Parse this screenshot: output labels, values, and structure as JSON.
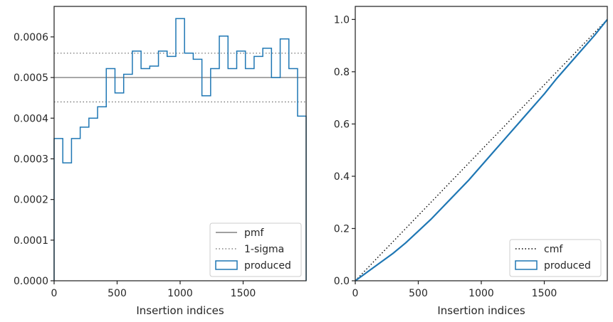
{
  "colors": {
    "produced": "#1f77b4",
    "pmf": "#808080",
    "sigma": "#808080",
    "cmf": "#000000",
    "axes": "#262626"
  },
  "chart_data": [
    {
      "type": "histogram",
      "xlabel": "Insertion indices",
      "ylabel": "",
      "xlim": [
        0,
        2000
      ],
      "ylim": [
        0,
        0.000675
      ],
      "xticks": [
        0,
        500,
        1000,
        1500
      ],
      "xtick_labels": [
        "0",
        "500",
        "1000",
        "1500"
      ],
      "yticks": [
        0,
        0.0001,
        0.0002,
        0.0003,
        0.0004,
        0.0005,
        0.0006
      ],
      "ytick_labels": [
        "0.0000",
        "0.0001",
        "0.0002",
        "0.0003",
        "0.0004",
        "0.0005",
        "0.0006"
      ],
      "bin_width": 69,
      "bin_edges_start": 0,
      "produced_values": [
        0.00035,
        0.00029,
        0.00035,
        0.000378,
        0.0004,
        0.000428,
        0.000522,
        0.000462,
        0.000508,
        0.000565,
        0.000522,
        0.000528,
        0.000565,
        0.000552,
        0.000645,
        0.00056,
        0.000545,
        0.000455,
        0.000522,
        0.000602,
        0.000522,
        0.000565,
        0.000522,
        0.000552,
        0.000572,
        0.0005,
        0.000595,
        0.000522,
        0.000405
      ],
      "pmf": 0.0005,
      "sigma_upper": 0.00056,
      "sigma_lower": 0.00044,
      "legend": {
        "position": "lower right",
        "entries": [
          "pmf",
          "1-sigma",
          "produced"
        ]
      }
    },
    {
      "type": "line",
      "xlabel": "Insertion indices",
      "ylabel": "",
      "xlim": [
        0,
        2000
      ],
      "ylim": [
        0,
        1.05
      ],
      "xticks": [
        0,
        500,
        1000,
        1500
      ],
      "xtick_labels": [
        "0",
        "500",
        "1000",
        "1500"
      ],
      "yticks": [
        0,
        0.2,
        0.4,
        0.6,
        0.8,
        1.0
      ],
      "ytick_labels": [
        "0.0",
        "0.2",
        "0.4",
        "0.6",
        "0.8",
        "1.0"
      ],
      "cmf": {
        "x": [
          0,
          2000
        ],
        "y": [
          0,
          1.0
        ]
      },
      "produced": {
        "x": [
          0,
          100,
          200,
          300,
          400,
          500,
          600,
          700,
          800,
          900,
          1000,
          1100,
          1200,
          1300,
          1400,
          1500,
          1600,
          1700,
          1800,
          1900,
          2000
        ],
        "y": [
          0,
          0.035,
          0.07,
          0.105,
          0.145,
          0.19,
          0.235,
          0.285,
          0.335,
          0.385,
          0.44,
          0.495,
          0.55,
          0.605,
          0.66,
          0.715,
          0.775,
          0.83,
          0.885,
          0.94,
          1.0
        ]
      },
      "legend": {
        "position": "lower right",
        "entries": [
          "cmf",
          "produced"
        ]
      }
    }
  ]
}
